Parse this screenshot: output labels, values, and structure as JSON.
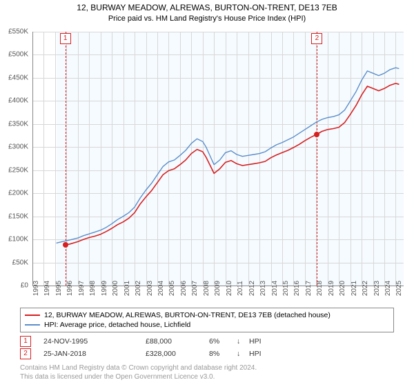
{
  "title_line1": "12, BURWAY MEADOW, ALREWAS, BURTON-ON-TRENT, DE13 7EB",
  "title_line2": "Price paid vs. HM Land Registry's House Price Index (HPI)",
  "chart": {
    "type": "line",
    "plot_bg": "#f6fbff",
    "grid_color": "#d7d7d7",
    "axis_font_size": 10,
    "x_years": [
      1993,
      1994,
      1995,
      1996,
      1997,
      1998,
      1999,
      2000,
      2001,
      2002,
      2003,
      2004,
      2005,
      2006,
      2007,
      2008,
      2009,
      2010,
      2011,
      2012,
      2013,
      2014,
      2015,
      2016,
      2017,
      2018,
      2019,
      2020,
      2021,
      2022,
      2023,
      2024,
      2025
    ],
    "xlim": [
      1993,
      2025.7
    ],
    "y_ticks": [
      0,
      50,
      100,
      150,
      200,
      250,
      300,
      350,
      400,
      450,
      500,
      550
    ],
    "y_tick_labels": [
      "£0",
      "£50K",
      "£100K",
      "£150K",
      "£200K",
      "£250K",
      "£300K",
      "£350K",
      "£400K",
      "£450K",
      "£500K",
      "£550K"
    ],
    "ylim": [
      0,
      550
    ],
    "series": [
      {
        "name": "hpi",
        "color": "#5b8ecb",
        "width": 1.4,
        "points": [
          [
            1995.1,
            92
          ],
          [
            1995.6,
            95
          ],
          [
            1996.0,
            97
          ],
          [
            1996.5,
            100
          ],
          [
            1997.0,
            103
          ],
          [
            1997.5,
            108
          ],
          [
            1998.0,
            112
          ],
          [
            1998.5,
            116
          ],
          [
            1999.0,
            120
          ],
          [
            1999.5,
            126
          ],
          [
            2000.0,
            134
          ],
          [
            2000.5,
            143
          ],
          [
            2001.0,
            150
          ],
          [
            2001.5,
            158
          ],
          [
            2002.0,
            170
          ],
          [
            2002.5,
            190
          ],
          [
            2003.0,
            207
          ],
          [
            2003.5,
            222
          ],
          [
            2004.0,
            240
          ],
          [
            2004.5,
            258
          ],
          [
            2005.0,
            268
          ],
          [
            2005.5,
            272
          ],
          [
            2006.0,
            282
          ],
          [
            2006.5,
            293
          ],
          [
            2007.0,
            308
          ],
          [
            2007.5,
            318
          ],
          [
            2008.0,
            312
          ],
          [
            2008.3,
            300
          ],
          [
            2008.7,
            278
          ],
          [
            2009.0,
            262
          ],
          [
            2009.5,
            272
          ],
          [
            2010.0,
            288
          ],
          [
            2010.5,
            292
          ],
          [
            2011.0,
            284
          ],
          [
            2011.5,
            280
          ],
          [
            2012.0,
            282
          ],
          [
            2012.5,
            284
          ],
          [
            2013.0,
            286
          ],
          [
            2013.5,
            290
          ],
          [
            2014.0,
            298
          ],
          [
            2014.5,
            305
          ],
          [
            2015.0,
            310
          ],
          [
            2015.5,
            316
          ],
          [
            2016.0,
            322
          ],
          [
            2016.5,
            330
          ],
          [
            2017.0,
            338
          ],
          [
            2017.5,
            346
          ],
          [
            2018.0,
            354
          ],
          [
            2018.5,
            360
          ],
          [
            2019.0,
            364
          ],
          [
            2019.5,
            366
          ],
          [
            2020.0,
            370
          ],
          [
            2020.5,
            380
          ],
          [
            2021.0,
            400
          ],
          [
            2021.5,
            420
          ],
          [
            2022.0,
            445
          ],
          [
            2022.5,
            465
          ],
          [
            2023.0,
            460
          ],
          [
            2023.5,
            455
          ],
          [
            2024.0,
            460
          ],
          [
            2024.5,
            468
          ],
          [
            2025.0,
            472
          ],
          [
            2025.3,
            470
          ]
        ]
      },
      {
        "name": "property",
        "color": "#d62021",
        "width": 1.6,
        "points": [
          [
            1995.9,
            88
          ],
          [
            1996.3,
            90
          ],
          [
            1997.0,
            95
          ],
          [
            1997.5,
            100
          ],
          [
            1998.0,
            104
          ],
          [
            1998.5,
            107
          ],
          [
            1999.0,
            111
          ],
          [
            1999.5,
            117
          ],
          [
            2000.0,
            124
          ],
          [
            2000.5,
            132
          ],
          [
            2001.0,
            138
          ],
          [
            2001.5,
            146
          ],
          [
            2002.0,
            158
          ],
          [
            2002.5,
            177
          ],
          [
            2003.0,
            192
          ],
          [
            2003.5,
            206
          ],
          [
            2004.0,
            223
          ],
          [
            2004.5,
            240
          ],
          [
            2005.0,
            249
          ],
          [
            2005.5,
            253
          ],
          [
            2006.0,
            262
          ],
          [
            2006.5,
            272
          ],
          [
            2007.0,
            286
          ],
          [
            2007.5,
            295
          ],
          [
            2008.0,
            290
          ],
          [
            2008.3,
            278
          ],
          [
            2008.7,
            258
          ],
          [
            2009.0,
            243
          ],
          [
            2009.5,
            253
          ],
          [
            2010.0,
            267
          ],
          [
            2010.5,
            271
          ],
          [
            2011.0,
            264
          ],
          [
            2011.5,
            260
          ],
          [
            2012.0,
            262
          ],
          [
            2012.5,
            264
          ],
          [
            2013.0,
            266
          ],
          [
            2013.5,
            269
          ],
          [
            2014.0,
            277
          ],
          [
            2014.5,
            283
          ],
          [
            2015.0,
            288
          ],
          [
            2015.5,
            293
          ],
          [
            2016.0,
            299
          ],
          [
            2016.5,
            306
          ],
          [
            2017.0,
            314
          ],
          [
            2017.5,
            321
          ],
          [
            2018.07,
            328
          ],
          [
            2018.5,
            334
          ],
          [
            2019.0,
            338
          ],
          [
            2019.5,
            340
          ],
          [
            2020.0,
            343
          ],
          [
            2020.5,
            353
          ],
          [
            2021.0,
            371
          ],
          [
            2021.5,
            390
          ],
          [
            2022.0,
            413
          ],
          [
            2022.5,
            432
          ],
          [
            2023.0,
            427
          ],
          [
            2023.5,
            422
          ],
          [
            2024.0,
            427
          ],
          [
            2024.5,
            434
          ],
          [
            2025.0,
            438
          ],
          [
            2025.3,
            436
          ]
        ]
      }
    ],
    "markers": [
      {
        "label": "1",
        "x": 1995.9,
        "y": 88,
        "color": "#d62021"
      },
      {
        "label": "2",
        "x": 2018.07,
        "y": 328,
        "color": "#d62021"
      }
    ]
  },
  "legend": {
    "items": [
      {
        "color": "#d62021",
        "text": "12, BURWAY MEADOW, ALREWAS, BURTON-ON-TRENT, DE13 7EB (detached house)"
      },
      {
        "color": "#5b8ecb",
        "text": "HPI: Average price, detached house, Lichfield"
      }
    ]
  },
  "transactions": [
    {
      "label": "1",
      "color": "#d62021",
      "date": "24-NOV-1995",
      "price": "£88,000",
      "pct": "6%",
      "arrow": "↓",
      "suffix": "HPI"
    },
    {
      "label": "2",
      "color": "#d62021",
      "date": "25-JAN-2018",
      "price": "£328,000",
      "pct": "8%",
      "arrow": "↓",
      "suffix": "HPI"
    }
  ],
  "footer_line1": "Contains HM Land Registry data © Crown copyright and database right 2024.",
  "footer_line2": "This data is licensed under the Open Government Licence v3.0."
}
